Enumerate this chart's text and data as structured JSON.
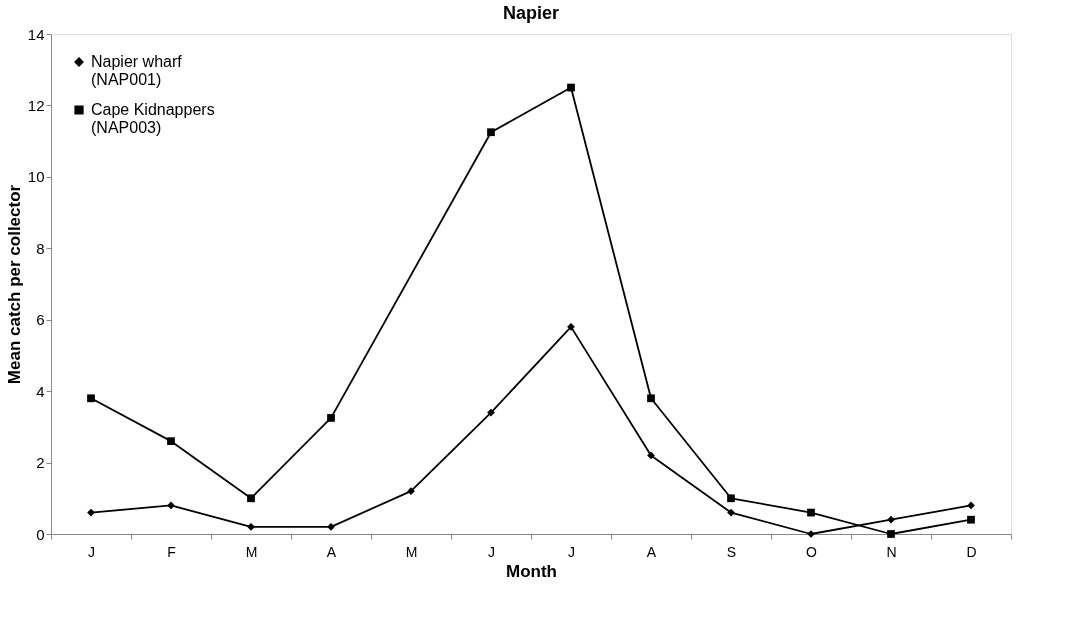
{
  "chart_data": {
    "type": "line",
    "title": "Napier",
    "xlabel": "Month",
    "ylabel": "Mean catch per collector",
    "categories": [
      "J",
      "F",
      "M",
      "A",
      "M",
      "J",
      "J",
      "A",
      "S",
      "O",
      "N",
      "D"
    ],
    "series": [
      {
        "name": "Napier wharf\n(NAP001)",
        "color": "#000000",
        "marker": "diamond",
        "values": [
          0.6,
          0.8,
          0.2,
          0.2,
          1.2,
          3.4,
          5.8,
          2.2,
          0.6,
          0.0,
          0.4,
          0.8
        ]
      },
      {
        "name": "Cape Kidnappers\n(NAP003)",
        "color": "#000000",
        "marker": "square",
        "values": [
          3.8,
          2.6,
          1.0,
          3.25,
          null,
          11.25,
          12.5,
          3.8,
          1.0,
          0.6,
          0.0,
          0.4
        ]
      }
    ],
    "ylim": [
      0,
      14
    ],
    "yticks": [
      0,
      2,
      4,
      6,
      8,
      10,
      12,
      14
    ],
    "grid": false,
    "legend": "top left"
  }
}
